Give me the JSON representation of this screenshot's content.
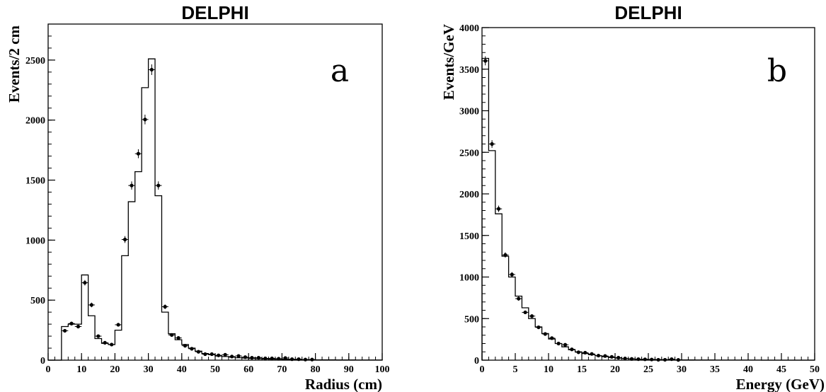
{
  "chart_data": [
    {
      "type": "histogram",
      "title": "DELPHI",
      "panel_label": "a",
      "xlabel": "Radius (cm)",
      "ylabel": "Events/2 cm",
      "xlim": [
        0,
        100
      ],
      "ylim": [
        0,
        2800
      ],
      "xticks": [
        0,
        10,
        20,
        30,
        40,
        50,
        60,
        70,
        80,
        90,
        100
      ],
      "yticks": [
        0,
        500,
        1000,
        1500,
        2000,
        2500
      ],
      "bin_width": 2,
      "histogram": {
        "bin_edges": [
          0,
          2,
          4,
          6,
          8,
          10,
          12,
          14,
          16,
          18,
          20,
          22,
          24,
          26,
          28,
          30,
          32,
          34,
          36,
          38,
          40,
          42,
          44,
          46,
          48,
          50,
          52,
          54,
          56,
          58,
          60,
          62,
          64,
          66,
          68,
          70,
          72,
          74,
          76,
          78,
          80,
          82,
          84,
          86,
          88,
          90,
          92,
          94,
          96,
          98,
          100
        ],
        "values": [
          0,
          0,
          280,
          300,
          300,
          710,
          370,
          180,
          140,
          130,
          250,
          870,
          1320,
          1570,
          2270,
          2510,
          1370,
          400,
          220,
          170,
          130,
          100,
          75,
          55,
          45,
          35,
          30,
          25,
          20,
          18,
          15,
          12,
          10,
          8,
          8,
          7,
          6,
          5,
          5,
          4,
          3,
          3,
          3,
          2,
          2,
          2,
          1,
          1,
          1,
          1
        ]
      },
      "points": {
        "x": [
          5,
          7,
          9,
          11,
          13,
          15,
          17,
          19,
          21,
          23,
          25,
          27,
          29,
          31,
          33,
          35,
          37,
          39,
          41,
          43,
          45,
          47,
          49,
          51,
          53,
          55,
          57,
          59,
          61,
          63,
          65,
          67,
          69,
          71,
          73,
          75,
          77,
          79
        ],
        "y": [
          245,
          305,
          280,
          645,
          460,
          200,
          145,
          130,
          295,
          1005,
          1455,
          1720,
          2005,
          2420,
          1455,
          445,
          210,
          185,
          120,
          95,
          70,
          50,
          50,
          40,
          45,
          30,
          35,
          25,
          20,
          20,
          15,
          15,
          12,
          18,
          8,
          8,
          5,
          5
        ]
      }
    },
    {
      "type": "histogram",
      "title": "DELPHI",
      "panel_label": "b",
      "xlabel": "Energy (GeV)",
      "ylabel": "Events/GeV",
      "xlim": [
        0,
        50
      ],
      "ylim": [
        0,
        4000
      ],
      "xticks": [
        0,
        5,
        10,
        15,
        20,
        25,
        30,
        35,
        40,
        45,
        50
      ],
      "yticks": [
        0,
        500,
        1000,
        1500,
        2000,
        2500,
        3000,
        3500,
        4000
      ],
      "bin_width": 1,
      "histogram": {
        "bin_edges": [
          0,
          1,
          2,
          3,
          4,
          5,
          6,
          7,
          8,
          9,
          10,
          11,
          12,
          13,
          14,
          15,
          16,
          17,
          18,
          19,
          20,
          21,
          22,
          23,
          24,
          25,
          26,
          27,
          28,
          29,
          30,
          31,
          32,
          33,
          34,
          35,
          36,
          37,
          38,
          39,
          40,
          41,
          42,
          43,
          44,
          45,
          46,
          47,
          48,
          49,
          50
        ],
        "values": [
          3630,
          2520,
          1760,
          1250,
          1000,
          770,
          630,
          500,
          400,
          320,
          255,
          200,
          160,
          125,
          100,
          80,
          65,
          52,
          42,
          32,
          25,
          20,
          15,
          12,
          10,
          8,
          7,
          6,
          5,
          4,
          3,
          3,
          2,
          2,
          2,
          1,
          1,
          1,
          1,
          1,
          1,
          1,
          0,
          0,
          0,
          0,
          0,
          0,
          0,
          0
        ]
      },
      "points": {
        "x": [
          0.5,
          1.5,
          2.5,
          3.5,
          4.5,
          5.5,
          6.5,
          7.5,
          8.5,
          9.5,
          10.5,
          11.5,
          12.5,
          13.5,
          14.5,
          15.5,
          16.5,
          17.5,
          18.5,
          19.5,
          20.5,
          21.5,
          22.5,
          23.5,
          24.5,
          25.5,
          26.5,
          27.5,
          28.5,
          29.5
        ],
        "y": [
          3600,
          2600,
          1820,
          1265,
          1030,
          740,
          575,
          530,
          395,
          315,
          265,
          200,
          185,
          130,
          95,
          90,
          75,
          55,
          50,
          40,
          30,
          20,
          15,
          12,
          10,
          8,
          5,
          5,
          12,
          3
        ]
      }
    }
  ]
}
